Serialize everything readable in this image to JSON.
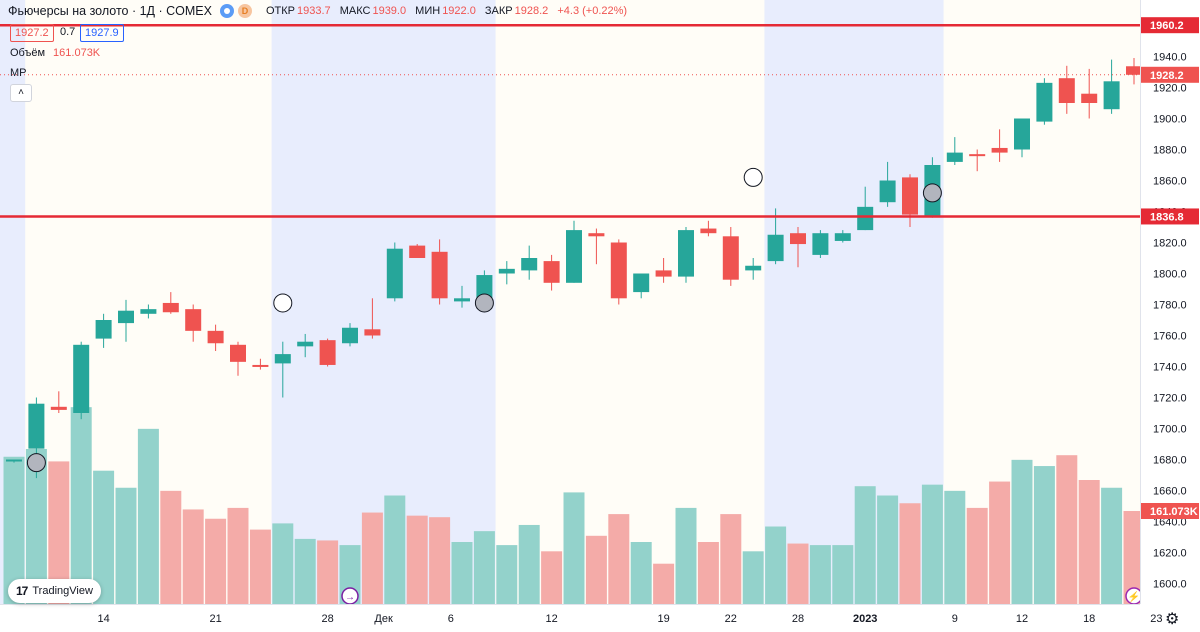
{
  "header": {
    "symbol": "Фьючерсы на золото · 1Д · COMEX",
    "d_badge": "D",
    "open_label": "ОТКР",
    "open": "1933.7",
    "high_label": "МАКС",
    "high": "1939.0",
    "low_label": "МИН",
    "low": "1922.0",
    "close_label": "ЗАКР",
    "close": "1928.2",
    "change": "+4.3 (+0.22%)"
  },
  "quote": {
    "sell": "1927.2",
    "spread": "0.7",
    "buy": "1927.9"
  },
  "volume": {
    "label": "Объём",
    "value": "161.073K"
  },
  "indicator": {
    "label": "MP",
    "collapse": "˄"
  },
  "logo": {
    "mark": "17",
    "text": "TradingView"
  },
  "settings_icon": "gear-icon",
  "colors": {
    "up": "#26a69a",
    "down": "#ef5350",
    "up_vol": "#93d2cb",
    "down_vol": "#f4aba8",
    "level": "#e52a35",
    "session": "#e8edfd",
    "bg": "#fffdf7"
  },
  "chart_data": {
    "type": "candlestick",
    "title": "Фьючерсы на золото · 1Д · COMEX",
    "y_axis": {
      "min": 1580,
      "max": 1970,
      "ticks": [
        1600,
        1620,
        1640,
        1660,
        1680,
        1700,
        1720,
        1740,
        1760,
        1780,
        1800,
        1820,
        1840,
        1860,
        1880,
        1900,
        1920,
        1940
      ]
    },
    "x_ticks": [
      {
        "label": "14",
        "index": 4
      },
      {
        "label": "21",
        "index": 9
      },
      {
        "label": "28",
        "index": 14
      },
      {
        "label": "Дек",
        "index": 16.5
      },
      {
        "label": "6",
        "index": 19.5
      },
      {
        "label": "12",
        "index": 24
      },
      {
        "label": "19",
        "index": 29
      },
      {
        "label": "22",
        "index": 32
      },
      {
        "label": "28",
        "index": 35
      },
      {
        "label": "2023",
        "index": 38,
        "bold": true
      },
      {
        "label": "9",
        "index": 42
      },
      {
        "label": "12",
        "index": 45
      },
      {
        "label": "18",
        "index": 48
      },
      {
        "label": "23",
        "index": 51
      }
    ],
    "session_bands": [
      [
        -1,
        0.5
      ],
      [
        11.5,
        21.5
      ],
      [
        33.5,
        41.5
      ]
    ],
    "level_lines": [
      {
        "value": 1960.2,
        "label": "1960.2"
      },
      {
        "value": 1836.8,
        "label": "1836.8"
      }
    ],
    "last_price": {
      "value": 1928.2,
      "label": "1928.2"
    },
    "volume_label": "161.073K",
    "candles": [
      {
        "o": 1680,
        "h": 1680,
        "l": 1678,
        "c": 1680,
        "v": 95
      },
      {
        "o": 1687,
        "h": 1720,
        "l": 1668,
        "c": 1716,
        "v": 100
      },
      {
        "o": 1714,
        "h": 1724,
        "l": 1710,
        "c": 1712,
        "v": 92
      },
      {
        "o": 1710,
        "h": 1756,
        "l": 1706,
        "c": 1754,
        "v": 127
      },
      {
        "o": 1758,
        "h": 1774,
        "l": 1752,
        "c": 1770,
        "v": 86
      },
      {
        "o": 1768,
        "h": 1783,
        "l": 1756,
        "c": 1776,
        "v": 75
      },
      {
        "o": 1774,
        "h": 1780,
        "l": 1771,
        "c": 1777,
        "v": 113
      },
      {
        "o": 1781,
        "h": 1788,
        "l": 1774,
        "c": 1775,
        "v": 73
      },
      {
        "o": 1777,
        "h": 1780,
        "l": 1756,
        "c": 1763,
        "v": 61
      },
      {
        "o": 1763,
        "h": 1767,
        "l": 1750,
        "c": 1755,
        "v": 55
      },
      {
        "o": 1754,
        "h": 1756,
        "l": 1734,
        "c": 1743,
        "v": 62
      },
      {
        "o": 1741,
        "h": 1745,
        "l": 1738,
        "c": 1740,
        "v": 48
      },
      {
        "o": 1742,
        "h": 1756,
        "l": 1720,
        "c": 1748,
        "v": 52
      },
      {
        "o": 1753,
        "h": 1761,
        "l": 1746,
        "c": 1756,
        "v": 42
      },
      {
        "o": 1757,
        "h": 1758,
        "l": 1740,
        "c": 1741,
        "v": 41
      },
      {
        "o": 1755,
        "h": 1768,
        "l": 1753,
        "c": 1765,
        "v": 38
      },
      {
        "o": 1764,
        "h": 1784,
        "l": 1758,
        "c": 1760,
        "v": 59
      },
      {
        "o": 1784,
        "h": 1820,
        "l": 1782,
        "c": 1816,
        "v": 70
      },
      {
        "o": 1818,
        "h": 1819,
        "l": 1810,
        "c": 1810,
        "v": 57
      },
      {
        "o": 1814,
        "h": 1822,
        "l": 1780,
        "c": 1784,
        "v": 56
      },
      {
        "o": 1782,
        "h": 1792,
        "l": 1778,
        "c": 1784,
        "v": 40
      },
      {
        "o": 1784,
        "h": 1802,
        "l": 1782,
        "c": 1799,
        "v": 47
      },
      {
        "o": 1800,
        "h": 1808,
        "l": 1793,
        "c": 1803,
        "v": 38
      },
      {
        "o": 1802,
        "h": 1818,
        "l": 1796,
        "c": 1810,
        "v": 51
      },
      {
        "o": 1808,
        "h": 1812,
        "l": 1789,
        "c": 1794,
        "v": 34
      },
      {
        "o": 1794,
        "h": 1834,
        "l": 1794,
        "c": 1828,
        "v": 72
      },
      {
        "o": 1826,
        "h": 1829,
        "l": 1806,
        "c": 1824,
        "v": 44
      },
      {
        "o": 1820,
        "h": 1822,
        "l": 1780,
        "c": 1784,
        "v": 58
      },
      {
        "o": 1788,
        "h": 1800,
        "l": 1784,
        "c": 1800,
        "v": 40
      },
      {
        "o": 1802,
        "h": 1810,
        "l": 1794,
        "c": 1798,
        "v": 26
      },
      {
        "o": 1798,
        "h": 1830,
        "l": 1794,
        "c": 1828,
        "v": 62
      },
      {
        "o": 1829,
        "h": 1834,
        "l": 1824,
        "c": 1826,
        "v": 40
      },
      {
        "o": 1824,
        "h": 1830,
        "l": 1792,
        "c": 1796,
        "v": 58
      },
      {
        "o": 1802,
        "h": 1810,
        "l": 1796,
        "c": 1805,
        "v": 34
      },
      {
        "o": 1808,
        "h": 1842,
        "l": 1806,
        "c": 1825,
        "v": 50
      },
      {
        "o": 1826,
        "h": 1830,
        "l": 1804,
        "c": 1819,
        "v": 39
      },
      {
        "o": 1812,
        "h": 1828,
        "l": 1810,
        "c": 1826,
        "v": 38
      },
      {
        "o": 1821,
        "h": 1828,
        "l": 1820,
        "c": 1826,
        "v": 38
      },
      {
        "o": 1828,
        "h": 1856,
        "l": 1828,
        "c": 1843,
        "v": 76
      },
      {
        "o": 1846,
        "h": 1872,
        "l": 1843,
        "c": 1860,
        "v": 70
      },
      {
        "o": 1862,
        "h": 1864,
        "l": 1830,
        "c": 1838,
        "v": 65
      },
      {
        "o": 1837,
        "h": 1875,
        "l": 1836,
        "c": 1870,
        "v": 77
      },
      {
        "o": 1872,
        "h": 1888,
        "l": 1870,
        "c": 1878,
        "v": 73
      },
      {
        "o": 1877,
        "h": 1880,
        "l": 1866,
        "c": 1876,
        "v": 62
      },
      {
        "o": 1881,
        "h": 1893,
        "l": 1872,
        "c": 1878,
        "v": 79
      },
      {
        "o": 1880,
        "h": 1900,
        "l": 1875,
        "c": 1900,
        "v": 93
      },
      {
        "o": 1898,
        "h": 1926,
        "l": 1896,
        "c": 1923,
        "v": 89
      },
      {
        "o": 1926,
        "h": 1934,
        "l": 1903,
        "c": 1910,
        "v": 96
      },
      {
        "o": 1916,
        "h": 1932,
        "l": 1900,
        "c": 1910,
        "v": 80
      },
      {
        "o": 1906,
        "h": 1938,
        "l": 1903,
        "c": 1924,
        "v": 75
      },
      {
        "o": 1933.7,
        "h": 1939,
        "l": 1922,
        "c": 1928.2,
        "v": 60
      }
    ],
    "markers": [
      {
        "index": 1,
        "price": 1678,
        "fill": "#b2b5be"
      },
      {
        "index": 12,
        "price": 1781,
        "fill": "#ffffff"
      },
      {
        "index": 21,
        "price": 1781,
        "fill": "#b2b5be"
      },
      {
        "index": 33,
        "price": 1862,
        "fill": "#ffffff"
      },
      {
        "index": 41,
        "price": 1852,
        "fill": "#b2b5be"
      }
    ],
    "event_icons": [
      {
        "index": 15,
        "symbol": "→",
        "color": "#7b1fa2"
      },
      {
        "index": 50,
        "symbol": "⚡",
        "color": "#9c27b0"
      }
    ]
  }
}
